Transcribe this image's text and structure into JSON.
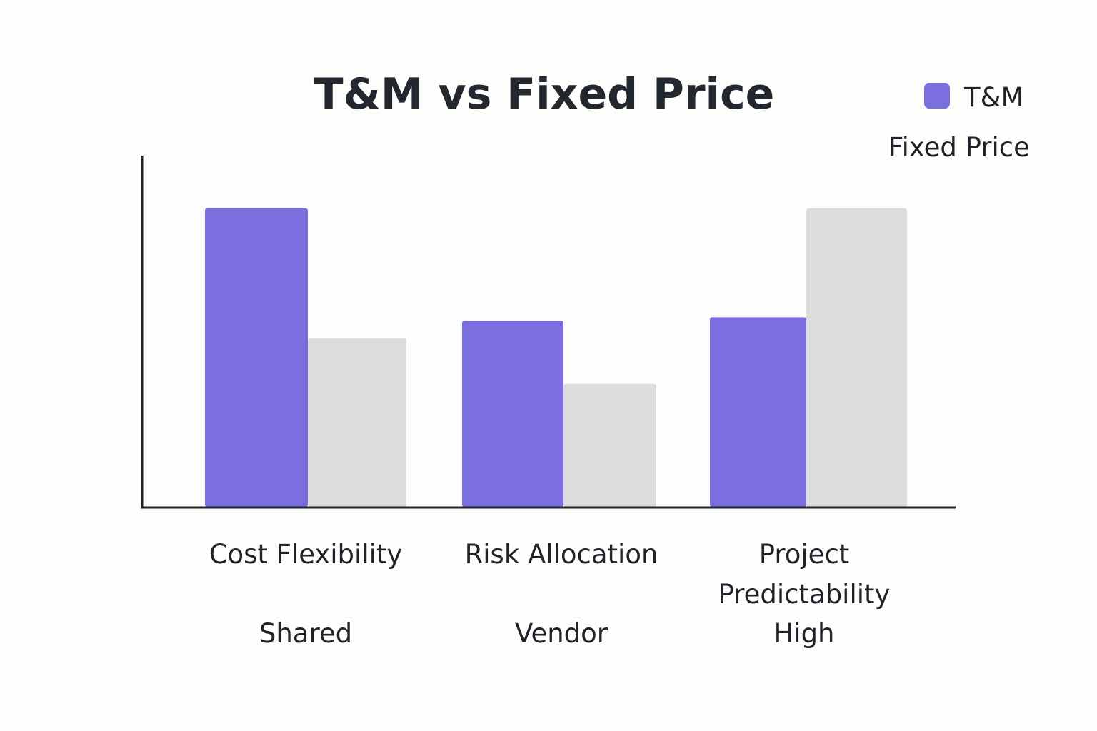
{
  "chart_data": {
    "type": "bar",
    "title": "T&M vs Fixed Price",
    "xlabel": "",
    "ylabel": "",
    "ylim": [
      0,
      10
    ],
    "categories": [
      "Cost Flexibility",
      "Risk Allocation",
      "Project Predictability"
    ],
    "category_lines": [
      [
        "Cost Flexibility"
      ],
      [
        "Risk Allocation"
      ],
      [
        "Project",
        "Predictability"
      ]
    ],
    "annotations": [
      "Shared",
      "Vendor",
      "High"
    ],
    "series": [
      {
        "name": "T&M",
        "color": "#7b6fe0",
        "values": [
          8.5,
          5.3,
          5.4
        ]
      },
      {
        "name": "Fixed Price",
        "color": "#dcdcdc",
        "values": [
          4.8,
          3.5,
          8.5
        ]
      }
    ],
    "grid": false,
    "legend_position": "top-right",
    "y_ticks_shown": false
  }
}
